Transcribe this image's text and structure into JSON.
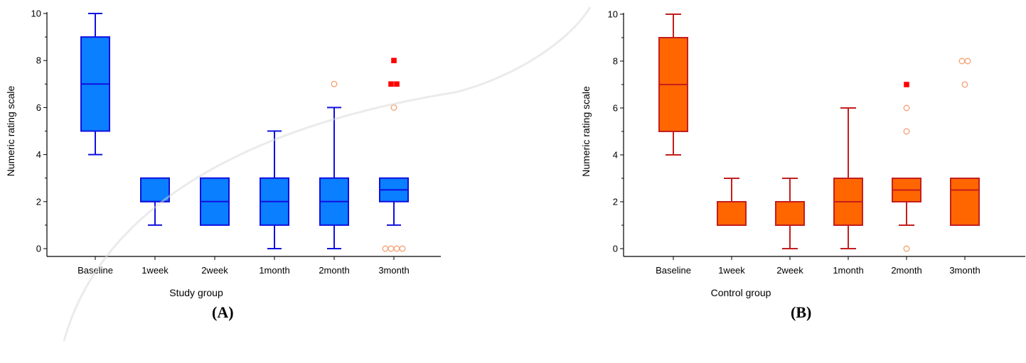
{
  "chart_data": [
    {
      "type": "box",
      "panel_label": "(A)",
      "xlabel": "Study group",
      "ylabel": "Numeric rating scale",
      "ylim": [
        0,
        10
      ],
      "yticks": [
        0,
        2,
        4,
        6,
        8,
        10
      ],
      "colors": {
        "fill": "#0a7fff",
        "stroke": "#1010e0",
        "outlier_open": "#f4a070",
        "outlier_far": "#ff0000"
      },
      "categories": [
        "Baseline",
        "1week",
        "2week",
        "1month",
        "2month",
        "3month"
      ],
      "boxes": [
        {
          "whisker_low": 4,
          "q1": 5,
          "median": 7,
          "q3": 9,
          "whisker_high": 10,
          "outliers": [],
          "far_outliers": []
        },
        {
          "whisker_low": 1,
          "q1": 2,
          "median": 2,
          "q3": 3,
          "whisker_high": 3,
          "outliers": [],
          "far_outliers": []
        },
        {
          "whisker_low": 1,
          "q1": 1,
          "median": 2,
          "q3": 3,
          "whisker_high": 3,
          "outliers": [],
          "far_outliers": []
        },
        {
          "whisker_low": 0,
          "q1": 1,
          "median": 2,
          "q3": 3,
          "whisker_high": 5,
          "outliers": [],
          "far_outliers": []
        },
        {
          "whisker_low": 0,
          "q1": 1,
          "median": 2,
          "q3": 3,
          "whisker_high": 6,
          "outliers": [
            7
          ],
          "far_outliers": []
        },
        {
          "whisker_low": 1,
          "q1": 2,
          "median": 2.5,
          "q3": 3,
          "whisker_high": 3,
          "outliers": [
            0,
            0,
            0,
            0,
            6
          ],
          "far_outliers": [
            7,
            7,
            8
          ]
        }
      ]
    },
    {
      "type": "box",
      "panel_label": "(B)",
      "xlabel": "Control group",
      "ylabel": "Numeric rating scale",
      "ylim": [
        0,
        10
      ],
      "yticks": [
        0,
        2,
        4,
        6,
        8,
        10
      ],
      "colors": {
        "fill": "#ff6600",
        "stroke": "#c41e1e",
        "outlier_open": "#f4a070",
        "outlier_far": "#ff0000"
      },
      "categories": [
        "Baseline",
        "1week",
        "2week",
        "1month",
        "2month",
        "3month"
      ],
      "boxes": [
        {
          "whisker_low": 4,
          "q1": 5,
          "median": 7,
          "q3": 9,
          "whisker_high": 10,
          "outliers": [],
          "far_outliers": []
        },
        {
          "whisker_low": 1,
          "q1": 1,
          "median": 2,
          "q3": 2,
          "whisker_high": 3,
          "outliers": [],
          "far_outliers": []
        },
        {
          "whisker_low": 0,
          "q1": 1,
          "median": 2,
          "q3": 2,
          "whisker_high": 3,
          "outliers": [],
          "far_outliers": []
        },
        {
          "whisker_low": 0,
          "q1": 1,
          "median": 2,
          "q3": 3,
          "whisker_high": 6,
          "outliers": [],
          "far_outliers": []
        },
        {
          "whisker_low": 1,
          "q1": 2,
          "median": 2.5,
          "q3": 3,
          "whisker_high": 3,
          "outliers": [
            0,
            5,
            6
          ],
          "far_outliers": [
            7
          ]
        },
        {
          "whisker_low": 1,
          "q1": 1,
          "median": 2.5,
          "q3": 3,
          "whisker_high": 3,
          "outliers": [
            7,
            8,
            8
          ],
          "far_outliers": []
        }
      ]
    }
  ]
}
